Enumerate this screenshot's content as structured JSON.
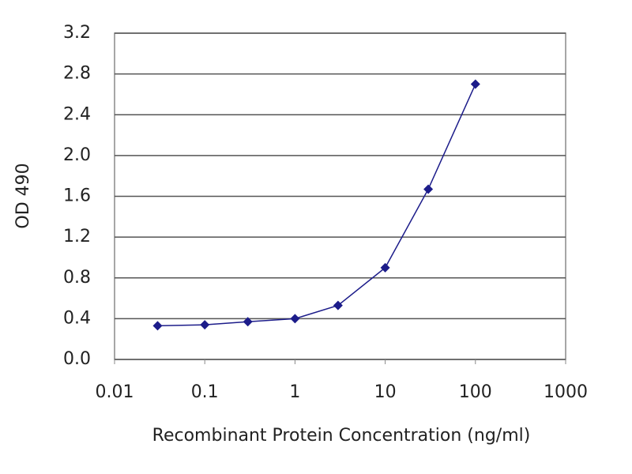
{
  "chart_data": {
    "type": "line",
    "x_label": "Recombinant Protein Concentration (ng/ml)",
    "y_label": "OD 490",
    "x": [
      0.03,
      0.1,
      0.3,
      1,
      3,
      10,
      30,
      100
    ],
    "values": [
      0.33,
      0.34,
      0.37,
      0.4,
      0.53,
      0.9,
      1.67,
      2.7
    ],
    "color": "#1c1c8a",
    "x_log": true,
    "xlim": [
      0.01,
      1000
    ],
    "xticks": [
      0.01,
      0.1,
      1,
      10,
      100,
      1000
    ],
    "ylim": [
      0,
      3.2
    ],
    "yticks": [
      {
        "value": 0,
        "label": "0.0"
      },
      0.4,
      0.8,
      1.2,
      1.6,
      {
        "value": 2,
        "label": "2.0"
      },
      2.4,
      2.8,
      3.2
    ],
    "grid": true
  }
}
